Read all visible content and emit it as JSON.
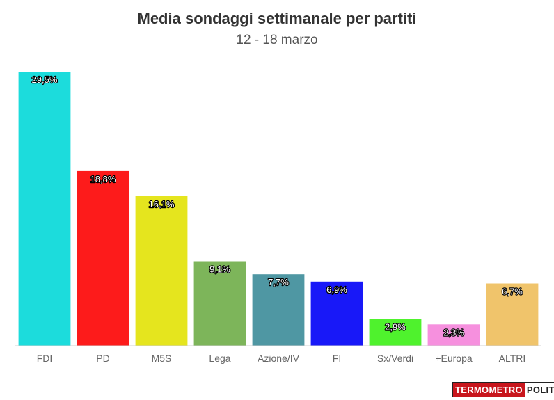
{
  "chart_data": {
    "type": "bar",
    "title": "Media sondaggi settimanale per partiti",
    "subtitle": "12 - 18 marzo",
    "categories": [
      "FDI",
      "PD",
      "M5S",
      "Lega",
      "Azione/IV",
      "FI",
      "Sx/Verdi",
      "+Europa",
      "ALTRI"
    ],
    "values": [
      29.5,
      18.8,
      16.1,
      9.1,
      7.7,
      6.9,
      2.9,
      2.3,
      6.7
    ],
    "value_labels": [
      "29,5%",
      "18,8%",
      "16,1%",
      "9,1%",
      "7,7%",
      "6,9%",
      "2,9%",
      "2,3%",
      "6,7%"
    ],
    "colors": [
      "#1cdcdc",
      "#fd1b1b",
      "#e5e51e",
      "#7db55a",
      "#4f97a3",
      "#1818f8",
      "#4ff22d",
      "#f690de",
      "#f0c46b"
    ],
    "ylim": [
      0,
      30
    ],
    "xlabel": "",
    "ylabel": "",
    "grid": false,
    "legend": "none"
  },
  "logo": {
    "part1": "TERMOMETRO",
    "part2": "POLITICO"
  }
}
